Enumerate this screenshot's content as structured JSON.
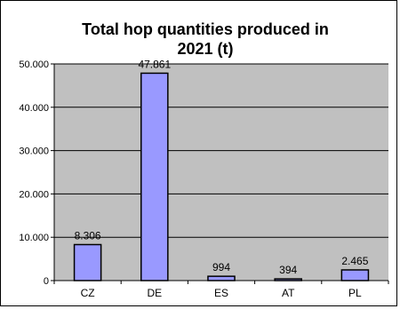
{
  "chart_data": {
    "type": "bar",
    "title_line1": "Total hop quantities produced in",
    "title_line2": "2021 (t)",
    "categories": [
      "CZ",
      "DE",
      "ES",
      "AT",
      "PL"
    ],
    "values": [
      8306,
      47861,
      994,
      394,
      2465
    ],
    "value_labels": [
      "8.306",
      "47.861",
      "994",
      "394",
      "2.465"
    ],
    "y_ticks": [
      0,
      10000,
      20000,
      30000,
      40000,
      50000
    ],
    "y_tick_labels": [
      "0",
      "10.000",
      "20.000",
      "30.000",
      "40.000",
      "50.000"
    ],
    "ylim": [
      0,
      50000
    ],
    "grid": true,
    "legend": "none",
    "xlabel": "",
    "ylabel": "",
    "colors": {
      "plot_background": "#c0c0c0",
      "bar_fill": "#9999ff",
      "bar_stroke": "#000000",
      "gridline": "#000000"
    }
  }
}
